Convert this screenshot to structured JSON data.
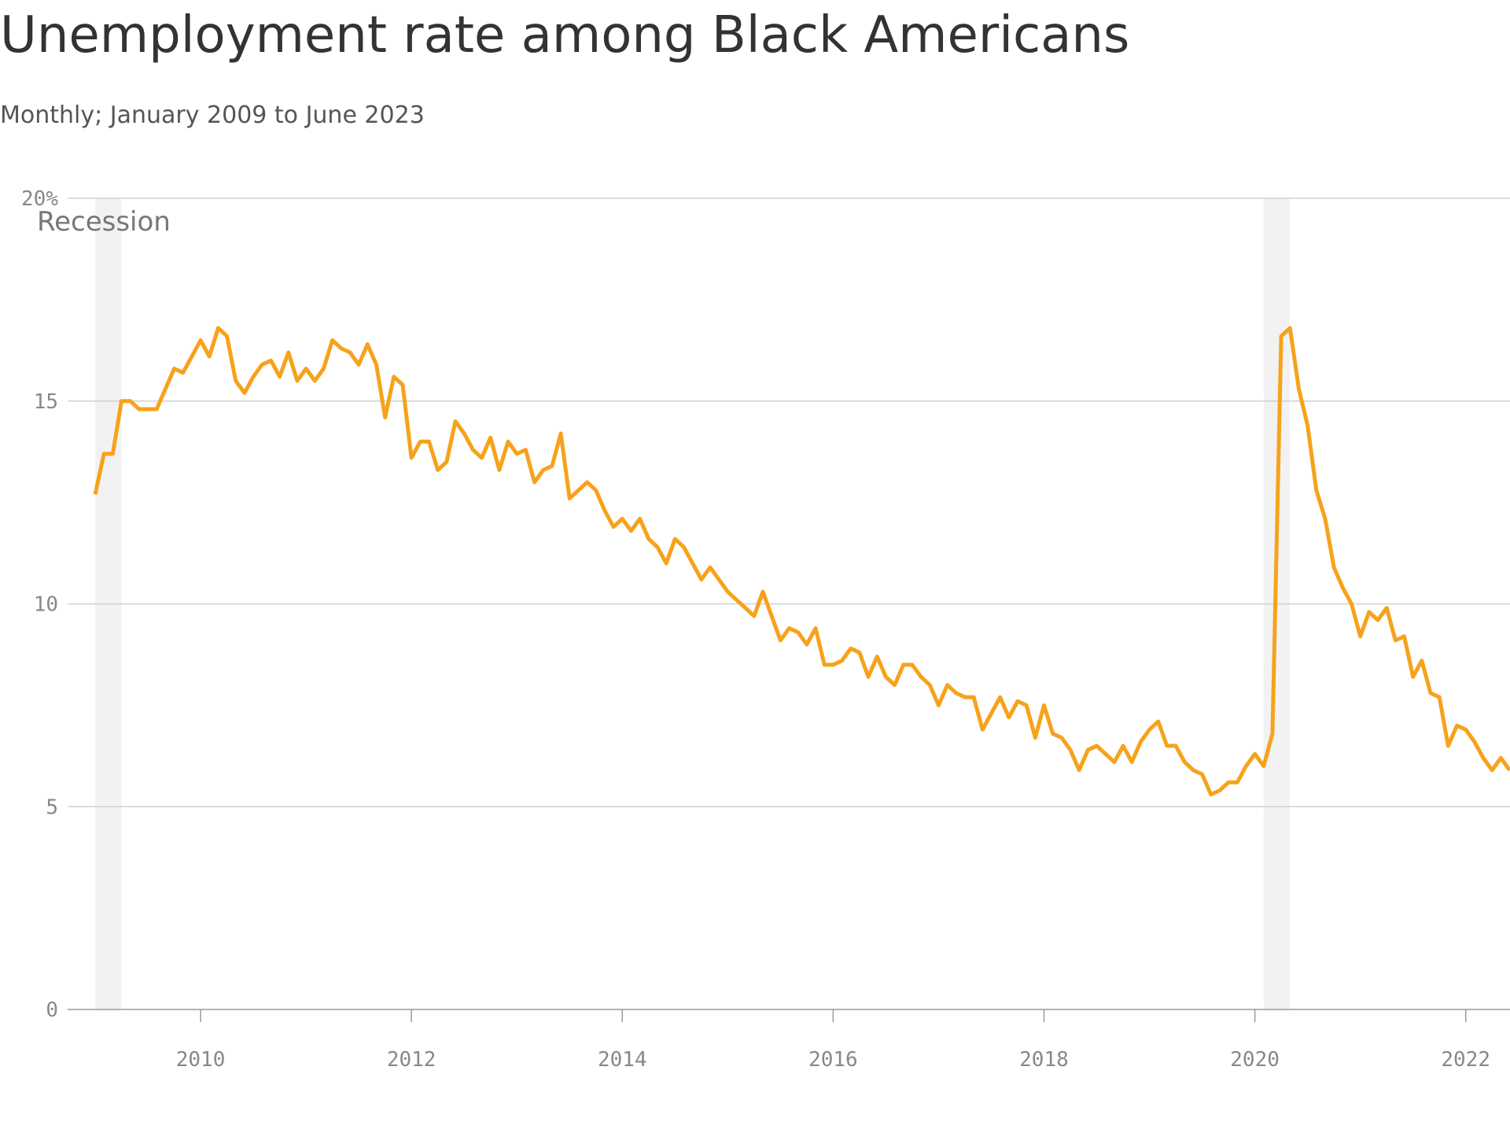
{
  "chart_data": {
    "type": "line",
    "title": "Unemployment rate among Black Americans",
    "subtitle": "Monthly; January 2009 to June 2023",
    "recession_label": "Recession",
    "recessions": [
      [
        2009,
        2009.25
      ],
      [
        2020.0833,
        2020.3333
      ]
    ],
    "recession_color": "#f2f2f2",
    "x": [
      2009,
      2009.0833,
      2009.1667,
      2009.25,
      2009.3333,
      2009.4167,
      2009.5,
      2009.5833,
      2009.6667,
      2009.75,
      2009.8333,
      2009.9167,
      2010,
      2010.0833,
      2010.1667,
      2010.25,
      2010.3333,
      2010.4167,
      2010.5,
      2010.5833,
      2010.6667,
      2010.75,
      2010.8333,
      2010.9167,
      2011,
      2011.0833,
      2011.1667,
      2011.25,
      2011.3333,
      2011.4167,
      2011.5,
      2011.5833,
      2011.6667,
      2011.75,
      2011.8333,
      2011.9167,
      2012,
      2012.0833,
      2012.1667,
      2012.25,
      2012.3333,
      2012.4167,
      2012.5,
      2012.5833,
      2012.6667,
      2012.75,
      2012.8333,
      2012.9167,
      2013,
      2013.0833,
      2013.1667,
      2013.25,
      2013.3333,
      2013.4167,
      2013.5,
      2013.5833,
      2013.6667,
      2013.75,
      2013.8333,
      2013.9167,
      2014,
      2014.0833,
      2014.1667,
      2014.25,
      2014.3333,
      2014.4167,
      2014.5,
      2014.5833,
      2014.6667,
      2014.75,
      2014.8333,
      2014.9167,
      2015,
      2015.0833,
      2015.1667,
      2015.25,
      2015.3333,
      2015.4167,
      2015.5,
      2015.5833,
      2015.6667,
      2015.75,
      2015.8333,
      2015.9167,
      2016,
      2016.0833,
      2016.1667,
      2016.25,
      2016.3333,
      2016.4167,
      2016.5,
      2016.5833,
      2016.6667,
      2016.75,
      2016.8333,
      2016.9167,
      2017,
      2017.0833,
      2017.1667,
      2017.25,
      2017.3333,
      2017.4167,
      2017.5,
      2017.5833,
      2017.6667,
      2017.75,
      2017.8333,
      2017.9167,
      2018,
      2018.0833,
      2018.1667,
      2018.25,
      2018.3333,
      2018.4167,
      2018.5,
      2018.5833,
      2018.6667,
      2018.75,
      2018.8333,
      2018.9167,
      2019,
      2019.0833,
      2019.1667,
      2019.25,
      2019.3333,
      2019.4167,
      2019.5,
      2019.5833,
      2019.6667,
      2019.75,
      2019.8333,
      2019.9167,
      2020,
      2020.0833,
      2020.1667,
      2020.25,
      2020.3333,
      2020.4167,
      2020.5,
      2020.5833,
      2020.6667,
      2020.75,
      2020.8333,
      2020.9167,
      2021,
      2021.0833,
      2021.1667,
      2021.25,
      2021.3333,
      2021.4167,
      2021.5,
      2021.5833,
      2021.6667,
      2021.75,
      2021.8333,
      2021.9167,
      2022,
      2022.0833,
      2022.1667,
      2022.25,
      2022.3333,
      2022.4167
    ],
    "series": [
      {
        "name": "Unemployment rate",
        "color": "#f7a21b",
        "values": [
          12.7,
          13.7,
          13.7,
          15.0,
          15.0,
          14.8,
          14.8,
          14.8,
          15.3,
          15.8,
          15.7,
          16.1,
          16.5,
          16.1,
          16.8,
          16.6,
          15.5,
          15.2,
          15.6,
          15.9,
          16.0,
          15.6,
          16.2,
          15.5,
          15.8,
          15.5,
          15.8,
          16.5,
          16.3,
          16.2,
          15.9,
          16.4,
          15.9,
          14.6,
          15.6,
          15.4,
          13.6,
          14.0,
          14.0,
          13.3,
          13.5,
          14.5,
          14.2,
          13.8,
          13.6,
          14.1,
          13.3,
          14.0,
          13.7,
          13.8,
          13.0,
          13.3,
          13.4,
          14.2,
          12.6,
          12.8,
          13.0,
          12.8,
          12.3,
          11.9,
          12.1,
          11.8,
          12.1,
          11.6,
          11.4,
          11.0,
          11.6,
          11.4,
          11.0,
          10.6,
          10.9,
          10.6,
          10.3,
          10.1,
          9.9,
          9.7,
          10.3,
          9.7,
          9.1,
          9.4,
          9.3,
          9.0,
          9.4,
          8.5,
          8.5,
          8.6,
          8.9,
          8.8,
          8.2,
          8.7,
          8.2,
          8.0,
          8.5,
          8.5,
          8.2,
          8.0,
          7.5,
          8.0,
          7.8,
          7.7,
          7.7,
          6.9,
          7.3,
          7.7,
          7.2,
          7.6,
          7.5,
          6.7,
          7.5,
          6.8,
          6.7,
          6.4,
          5.9,
          6.4,
          6.5,
          6.3,
          6.1,
          6.5,
          6.1,
          6.6,
          6.9,
          7.1,
          6.5,
          6.5,
          6.1,
          5.9,
          5.8,
          5.3,
          5.4,
          5.6,
          5.6,
          6.0,
          6.3,
          6.0,
          6.8,
          16.6,
          16.8,
          15.3,
          14.4,
          12.8,
          12.1,
          10.9,
          10.4,
          10.0,
          9.2,
          9.8,
          9.6,
          9.9,
          9.1,
          9.2,
          8.2,
          8.6,
          7.8,
          7.7,
          6.5,
          7.0,
          6.9,
          6.6,
          6.2,
          5.9,
          6.2,
          5.9
        ]
      }
    ],
    "xlim": [
      2009,
      2022.42
    ],
    "xticks": [
      2010,
      2012,
      2014,
      2016,
      2018,
      2020,
      2022
    ],
    "ylim": [
      0,
      20
    ],
    "yticks": [
      0,
      5,
      10,
      15,
      {
        "value": 20,
        "label": "20%"
      }
    ],
    "grid": true
  }
}
